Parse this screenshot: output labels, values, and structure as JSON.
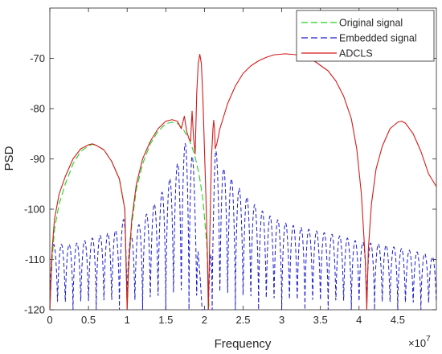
{
  "chart_data": {
    "type": "line",
    "title": "",
    "xlabel": "Frequency",
    "ylabel": "PSD",
    "x_multiplier_label": "×10",
    "x_multiplier_exponent": "7",
    "xlim": [
      0,
      5.0
    ],
    "ylim": [
      -120,
      -60
    ],
    "xticks": [
      0,
      0.5,
      1,
      1.5,
      2,
      2.5,
      3,
      3.5,
      4,
      4.5
    ],
    "xtick_labels": [
      "0",
      "0.5",
      "1",
      "1.5",
      "2",
      "2.5",
      "3",
      "3.5",
      "4",
      "4.5"
    ],
    "yticks": [
      -120,
      -110,
      -100,
      -90,
      -80,
      -70
    ],
    "ytick_labels": [
      "-120",
      "-110",
      "-100",
      "-90",
      "-80",
      "-70"
    ],
    "grid": false,
    "legend_position": "top-right",
    "series": [
      {
        "name": "Original signal",
        "style": "dashed",
        "color": "#1fd41f",
        "points": [
          [
            0.0,
            -120
          ],
          [
            0.03,
            -110
          ],
          [
            0.06,
            -104
          ],
          [
            0.12,
            -99
          ],
          [
            0.2,
            -95
          ],
          [
            0.3,
            -91
          ],
          [
            0.4,
            -88.5
          ],
          [
            0.5,
            -87.4
          ],
          [
            0.55,
            -87.1
          ],
          [
            0.6,
            -87.3
          ],
          [
            0.7,
            -88.2
          ],
          [
            0.8,
            -90.5
          ],
          [
            0.9,
            -94
          ],
          [
            0.97,
            -100
          ],
          [
            1.0,
            -120
          ],
          [
            1.02,
            -112
          ],
          [
            1.06,
            -103
          ],
          [
            1.12,
            -96
          ],
          [
            1.2,
            -91
          ],
          [
            1.3,
            -87
          ],
          [
            1.4,
            -84.5
          ],
          [
            1.5,
            -83
          ],
          [
            1.58,
            -82.7
          ],
          [
            1.65,
            -82.9
          ],
          [
            1.72,
            -84
          ],
          [
            1.8,
            -86
          ],
          [
            1.87,
            -89
          ],
          [
            1.93,
            -93
          ],
          [
            1.98,
            -98
          ],
          [
            2.03,
            -107
          ],
          [
            2.05,
            -116
          ],
          [
            2.06,
            -120
          ]
        ]
      },
      {
        "name": "Embedded signal",
        "style": "dashed",
        "color": "#1a1ad6",
        "peak_envelope": [
          [
            0.0,
            -107
          ],
          [
            0.3,
            -107
          ],
          [
            0.5,
            -106
          ],
          [
            0.7,
            -105
          ],
          [
            0.9,
            -104
          ],
          [
            0.98,
            -101
          ],
          [
            1.02,
            -106
          ],
          [
            1.2,
            -102
          ],
          [
            1.4,
            -98
          ],
          [
            1.55,
            -94
          ],
          [
            1.65,
            -91
          ],
          [
            1.72,
            -88
          ],
          [
            1.78,
            -86
          ],
          [
            1.8,
            -85
          ],
          [
            1.83,
            -87
          ],
          [
            1.88,
            -95
          ],
          [
            1.91,
            -99
          ],
          [
            1.93,
            -110
          ],
          [
            1.97,
            -120
          ],
          [
            2.05,
            -120
          ],
          [
            2.1,
            -95
          ],
          [
            2.14,
            -88
          ],
          [
            2.2,
            -91
          ],
          [
            2.4,
            -95
          ],
          [
            2.6,
            -98.5
          ],
          [
            2.8,
            -101
          ],
          [
            3.0,
            -102.5
          ],
          [
            3.2,
            -103.5
          ],
          [
            3.5,
            -104.5
          ],
          [
            3.8,
            -105.5
          ],
          [
            4.0,
            -106.5
          ],
          [
            4.3,
            -107
          ],
          [
            4.6,
            -108
          ],
          [
            4.9,
            -109
          ],
          [
            5.0,
            -110
          ]
        ],
        "trough_level": -120
      },
      {
        "name": "ADCLS",
        "style": "solid",
        "color": "#d41a1a",
        "points": [
          [
            0.0,
            -120
          ],
          [
            0.03,
            -108
          ],
          [
            0.06,
            -102
          ],
          [
            0.12,
            -97
          ],
          [
            0.2,
            -93.5
          ],
          [
            0.3,
            -90
          ],
          [
            0.4,
            -88
          ],
          [
            0.5,
            -87.2
          ],
          [
            0.55,
            -87.0
          ],
          [
            0.6,
            -87.3
          ],
          [
            0.7,
            -88.2
          ],
          [
            0.8,
            -90.5
          ],
          [
            0.9,
            -94
          ],
          [
            0.97,
            -100
          ],
          [
            1.0,
            -120
          ],
          [
            1.02,
            -111
          ],
          [
            1.06,
            -102
          ],
          [
            1.12,
            -95
          ],
          [
            1.2,
            -90
          ],
          [
            1.3,
            -86.5
          ],
          [
            1.4,
            -84
          ],
          [
            1.5,
            -82.5
          ],
          [
            1.58,
            -82.2
          ],
          [
            1.65,
            -82.5
          ],
          [
            1.7,
            -84
          ],
          [
            1.74,
            -81.5
          ],
          [
            1.77,
            -84.5
          ],
          [
            1.8,
            -86
          ],
          [
            1.82,
            -86.5
          ],
          [
            1.84,
            -80.5
          ],
          [
            1.86,
            -86
          ],
          [
            1.88,
            -89
          ],
          [
            1.9,
            -77
          ],
          [
            1.92,
            -71
          ],
          [
            1.94,
            -69.2
          ],
          [
            1.96,
            -71
          ],
          [
            1.98,
            -78
          ],
          [
            2.0,
            -88
          ],
          [
            2.02,
            -98
          ],
          [
            2.04,
            -110
          ],
          [
            2.05,
            -120
          ],
          [
            2.07,
            -105
          ],
          [
            2.09,
            -90
          ],
          [
            2.11,
            -84
          ],
          [
            2.12,
            -82.3
          ],
          [
            2.13,
            -84
          ],
          [
            2.14,
            -88
          ],
          [
            2.16,
            -87
          ],
          [
            2.2,
            -84
          ],
          [
            2.3,
            -79
          ],
          [
            2.4,
            -75.5
          ],
          [
            2.5,
            -73
          ],
          [
            2.6,
            -71.5
          ],
          [
            2.7,
            -70.5
          ],
          [
            2.8,
            -69.8
          ],
          [
            2.9,
            -69.3
          ],
          [
            3.05,
            -69.1
          ],
          [
            3.2,
            -69.3
          ],
          [
            3.4,
            -70.3
          ],
          [
            3.6,
            -72.5
          ],
          [
            3.7,
            -74.5
          ],
          [
            3.8,
            -77.5
          ],
          [
            3.9,
            -82
          ],
          [
            3.97,
            -88
          ],
          [
            4.03,
            -97
          ],
          [
            4.08,
            -110
          ],
          [
            4.1,
            -120
          ],
          [
            4.12,
            -108
          ],
          [
            4.16,
            -99
          ],
          [
            4.22,
            -92
          ],
          [
            4.3,
            -87.5
          ],
          [
            4.4,
            -84
          ],
          [
            4.5,
            -82.7
          ],
          [
            4.55,
            -82.5
          ],
          [
            4.6,
            -82.9
          ],
          [
            4.7,
            -85
          ],
          [
            4.8,
            -88.5
          ],
          [
            4.9,
            -93
          ],
          [
            5.0,
            -95.5
          ]
        ]
      }
    ]
  }
}
